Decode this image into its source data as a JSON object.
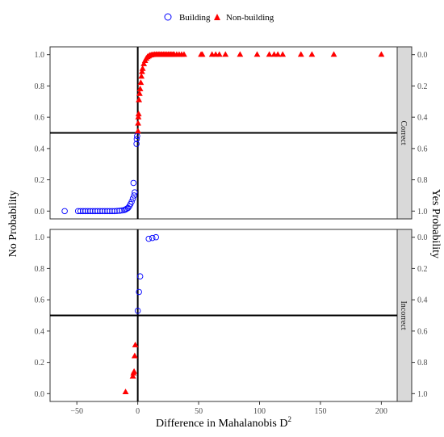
{
  "chart_data": {
    "type": "scatter",
    "x_label_base": "Difference in Mahalanobis D",
    "x_label_superscript": "2",
    "y_label_left": "No Probability",
    "y_label_right": "Yes Probability",
    "legend_position": "top",
    "xlim": [
      -72,
      213
    ],
    "ylim": [
      -0.05,
      1.05
    ],
    "x_ticks": [
      -50,
      0,
      50,
      100,
      150,
      200
    ],
    "x_tick_labels": [
      "−50",
      "0",
      "50",
      "100",
      "150",
      "200"
    ],
    "y_ticks": [
      0,
      0.2,
      0.4,
      0.6,
      0.8,
      1.0
    ],
    "y_tick_labels": [
      "0.0",
      "0.2",
      "0.4",
      "0.6",
      "0.8",
      "1.0"
    ],
    "y_right_tick_labels": [
      "1.0",
      "0.8",
      "0.6",
      "0.4",
      "0.2",
      "0.0"
    ],
    "hline": 0.5,
    "vline": 0,
    "grid": false,
    "series": [
      {
        "name": "Building",
        "marker": "open-circle",
        "color": "#0000ff"
      },
      {
        "name": "Non-building",
        "marker": "filled-triangle",
        "color": "#ff0000"
      }
    ],
    "panels": [
      {
        "strip": "Correct",
        "building": [
          [
            -60,
            0
          ],
          [
            -49,
            0
          ],
          [
            -47,
            0
          ],
          [
            -45,
            0
          ],
          [
            -43,
            0
          ],
          [
            -41,
            0
          ],
          [
            -39,
            0
          ],
          [
            -37,
            0
          ],
          [
            -35,
            0
          ],
          [
            -33,
            0
          ],
          [
            -31,
            0
          ],
          [
            -29,
            0
          ],
          [
            -27,
            0
          ],
          [
            -25,
            0
          ],
          [
            -23,
            0
          ],
          [
            -21,
            0
          ],
          [
            -19,
            0
          ],
          [
            -17,
            0.001
          ],
          [
            -15,
            0.002
          ],
          [
            -13,
            0.004
          ],
          [
            -11,
            0.007
          ],
          [
            -10,
            0.01
          ],
          [
            -9,
            0.015
          ],
          [
            -8,
            0.02
          ],
          [
            -7,
            0.03
          ],
          [
            -6,
            0.045
          ],
          [
            -5,
            0.06
          ],
          [
            -4,
            0.08
          ],
          [
            -3,
            0.1
          ],
          [
            -2.5,
            0.12
          ],
          [
            -3.5,
            0.18
          ],
          [
            -1,
            0.43
          ],
          [
            -0.8,
            0.46
          ],
          [
            -0.5,
            0.48
          ]
        ],
        "non_building": [
          [
            0.2,
            0.51
          ],
          [
            0.3,
            0.56
          ],
          [
            0.5,
            0.6
          ],
          [
            0.7,
            0.62
          ],
          [
            1,
            0.71
          ],
          [
            1.5,
            0.75
          ],
          [
            2,
            0.78
          ],
          [
            2.5,
            0.82
          ],
          [
            3,
            0.86
          ],
          [
            3.5,
            0.89
          ],
          [
            4,
            0.91
          ],
          [
            5,
            0.94
          ],
          [
            6,
            0.96
          ],
          [
            7,
            0.975
          ],
          [
            8,
            0.985
          ],
          [
            9,
            0.99
          ],
          [
            10,
            0.995
          ],
          [
            11,
            0.997
          ],
          [
            12,
            0.998
          ],
          [
            13,
            0.999
          ],
          [
            14,
            1
          ],
          [
            15,
            1
          ],
          [
            16,
            1
          ],
          [
            17,
            1
          ],
          [
            18,
            1
          ],
          [
            19,
            1
          ],
          [
            20,
            1
          ],
          [
            21,
            1
          ],
          [
            22,
            1
          ],
          [
            23,
            1
          ],
          [
            24,
            1
          ],
          [
            25,
            1
          ],
          [
            26,
            1
          ],
          [
            27,
            1
          ],
          [
            28,
            1
          ],
          [
            29,
            1
          ],
          [
            30,
            1
          ],
          [
            32,
            1
          ],
          [
            34,
            1
          ],
          [
            36,
            1
          ],
          [
            38,
            1
          ],
          [
            52,
            1
          ],
          [
            53,
            1
          ],
          [
            61,
            1
          ],
          [
            64,
            1
          ],
          [
            67,
            1
          ],
          [
            72,
            1
          ],
          [
            84,
            1
          ],
          [
            98,
            1
          ],
          [
            108,
            1
          ],
          [
            112,
            1
          ],
          [
            115,
            1
          ],
          [
            119,
            1
          ],
          [
            134,
            1
          ],
          [
            143,
            1
          ],
          [
            161,
            1
          ],
          [
            200,
            1
          ]
        ]
      },
      {
        "strip": "Incorrect",
        "building": [
          [
            0,
            0.53
          ],
          [
            1,
            0.65
          ],
          [
            2,
            0.75
          ],
          [
            9,
            0.99
          ],
          [
            12,
            0.995
          ],
          [
            15,
            1.0
          ]
        ],
        "non_building": [
          [
            -10,
            0.01
          ],
          [
            -4,
            0.11
          ],
          [
            -3.5,
            0.13
          ],
          [
            -3,
            0.14
          ],
          [
            -2.5,
            0.24
          ],
          [
            -2,
            0.31
          ]
        ]
      }
    ]
  }
}
